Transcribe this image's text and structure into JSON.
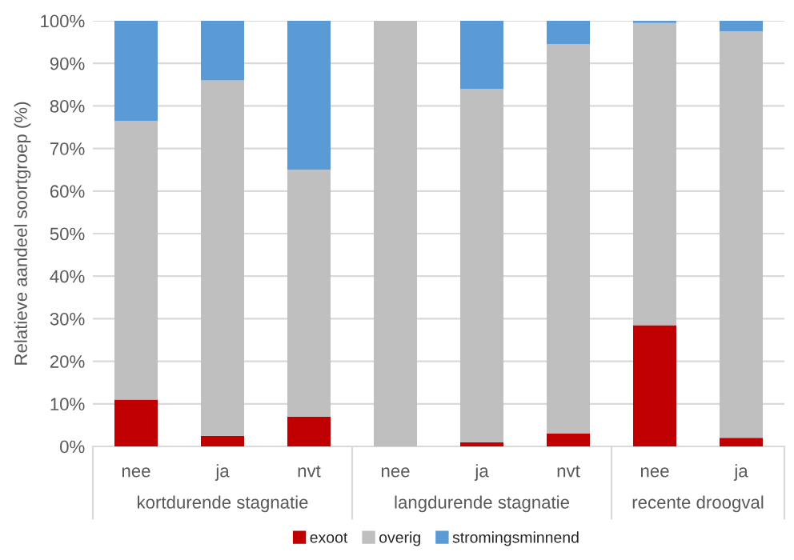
{
  "chart_data": {
    "type": "bar",
    "stacked": true,
    "ylabel": "Relatieve aandeel soortgroep (%)",
    "categories": [
      "nee",
      "ja",
      "nvt",
      "nee",
      "ja",
      "nvt",
      "nee",
      "ja"
    ],
    "series": [
      {
        "name": "exoot",
        "color": "#c00000",
        "values": [
          11,
          2.5,
          7,
          0,
          1,
          3,
          28.5,
          2
        ]
      },
      {
        "name": "overig",
        "color": "#bfbfbf",
        "values": [
          65.5,
          83.5,
          58,
          100,
          83,
          91.5,
          71,
          95.5
        ]
      },
      {
        "name": "stromingsminnend",
        "color": "#5b9bd5",
        "values": [
          23.5,
          14,
          35,
          0,
          16,
          5.5,
          0.5,
          2.5
        ]
      }
    ],
    "annotations": [
      "kortdurende stagnatie",
      "langdurende stagnatie",
      "recente droogval"
    ],
    "ylim": [
      0,
      100
    ],
    "yticks": [
      {
        "value": 0,
        "label": "0%"
      },
      {
        "value": 10,
        "label": "10%"
      },
      {
        "value": 20,
        "label": "20%"
      },
      {
        "value": 30,
        "label": "30%"
      },
      {
        "value": 40,
        "label": "40%"
      },
      {
        "value": 50,
        "label": "50%"
      },
      {
        "value": 60,
        "label": "60%"
      },
      {
        "value": 70,
        "label": "70%"
      },
      {
        "value": 80,
        "label": "80%"
      },
      {
        "value": 90,
        "label": "90%"
      },
      {
        "value": 100,
        "label": "100%"
      }
    ],
    "grid": "y",
    "legend": "bottom"
  }
}
